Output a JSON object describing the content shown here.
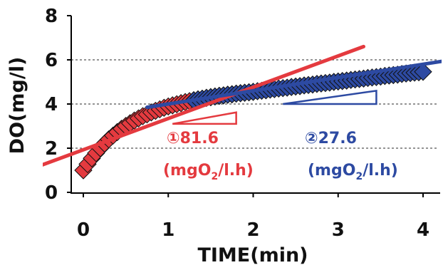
{
  "chart_data": {
    "type": "scatter",
    "title": "",
    "xlabel": "TIME(min)",
    "ylabel": "DO(mg/l)",
    "xlim": [
      0,
      4
    ],
    "ylim": [
      0,
      8
    ],
    "x_ticks": [
      "0",
      "1",
      "2",
      "3",
      "4"
    ],
    "y_ticks": [
      "0",
      "2",
      "4",
      "6",
      "8"
    ],
    "grid": "horizontal dashed at 2, 4, 6",
    "colors": {
      "red": "#e43a3f",
      "blue": "#2d4aa2",
      "grid": "#555555",
      "axis": "#000000"
    },
    "series": [
      {
        "marker": "diamond",
        "color": "#e43a3f",
        "x": [
          0.0,
          0.05,
          0.1,
          0.15,
          0.2,
          0.25,
          0.3,
          0.35,
          0.4,
          0.45,
          0.5,
          0.55,
          0.6,
          0.65,
          0.7,
          0.75,
          0.8,
          0.85,
          0.9,
          0.95,
          1.0,
          1.05,
          1.1,
          1.15,
          1.2,
          1.25,
          1.3,
          1.35,
          1.4,
          1.45,
          1.5,
          1.55,
          1.6,
          1.65,
          1.7,
          1.75,
          1.8,
          1.85,
          1.9,
          1.95,
          2.0
        ],
        "y": [
          1.0,
          1.28,
          1.54,
          1.78,
          2.0,
          2.21,
          2.4,
          2.57,
          2.73,
          2.88,
          3.01,
          3.13,
          3.25,
          3.35,
          3.45,
          3.53,
          3.62,
          3.69,
          3.76,
          3.83,
          3.89,
          3.94,
          3.99,
          4.04,
          4.09,
          4.13,
          4.17,
          4.21,
          4.24,
          4.28,
          4.31,
          4.34,
          4.37,
          4.39,
          4.42,
          4.44,
          4.47,
          4.49,
          4.51,
          4.53,
          4.55
        ]
      },
      {
        "marker": "diamond",
        "color": "#2d4aa2",
        "x": [
          1.3,
          1.35,
          1.4,
          1.45,
          1.5,
          1.55,
          1.6,
          1.65,
          1.7,
          1.75,
          1.8,
          1.85,
          1.9,
          1.95,
          2.0,
          2.05,
          2.1,
          2.15,
          2.2,
          2.25,
          2.3,
          2.35,
          2.4,
          2.45,
          2.5,
          2.55,
          2.6,
          2.65,
          2.7,
          2.75,
          2.8,
          2.85,
          2.9,
          2.95,
          3.0,
          3.05,
          3.1,
          3.15,
          3.2,
          3.25,
          3.3,
          3.35,
          3.4,
          3.45,
          3.5,
          3.55,
          3.6,
          3.65,
          3.7,
          3.75,
          3.8,
          3.85,
          3.9,
          3.95,
          4.0
        ],
        "y": [
          4.17,
          4.21,
          4.24,
          4.28,
          4.31,
          4.34,
          4.37,
          4.39,
          4.42,
          4.44,
          4.47,
          4.49,
          4.51,
          4.53,
          4.55,
          4.58,
          4.6,
          4.62,
          4.65,
          4.67,
          4.7,
          4.72,
          4.74,
          4.77,
          4.79,
          4.81,
          4.84,
          4.86,
          4.88,
          4.91,
          4.93,
          4.95,
          4.97,
          5.0,
          5.02,
          5.04,
          5.06,
          5.09,
          5.11,
          5.13,
          5.15,
          5.18,
          5.2,
          5.22,
          5.24,
          5.27,
          5.29,
          5.31,
          5.33,
          5.36,
          5.38,
          5.4,
          5.42,
          5.44,
          5.46
        ]
      }
    ],
    "fit_lines": [
      {
        "color": "#e43a3f",
        "points": [
          [
            -0.55,
            1.15
          ],
          [
            3.3,
            6.6
          ]
        ]
      },
      {
        "color": "#2d4aa2",
        "points": [
          [
            0.75,
            3.85
          ],
          [
            4.25,
            5.95
          ]
        ]
      }
    ],
    "slope_triangles": [
      {
        "color": "#e43a3f",
        "points": [
          [
            1.05,
            3.1
          ],
          [
            1.8,
            3.1
          ],
          [
            1.8,
            3.62
          ]
        ]
      },
      {
        "color": "#2d4aa2",
        "points": [
          [
            2.35,
            4.0
          ],
          [
            3.45,
            4.0
          ],
          [
            3.45,
            4.6
          ]
        ]
      }
    ],
    "annotations": [
      {
        "id": "red_rate",
        "num": "①81.6",
        "unit_prefix": "(mgO",
        "unit_sub": "2",
        "unit_suffix": "/l.h)",
        "color": "#e43a3f"
      },
      {
        "id": "blue_rate",
        "num": "②27.6",
        "unit_prefix": "(mgO",
        "unit_sub": "2",
        "unit_suffix": "/l.h)",
        "color": "#2d4aa2"
      }
    ]
  }
}
